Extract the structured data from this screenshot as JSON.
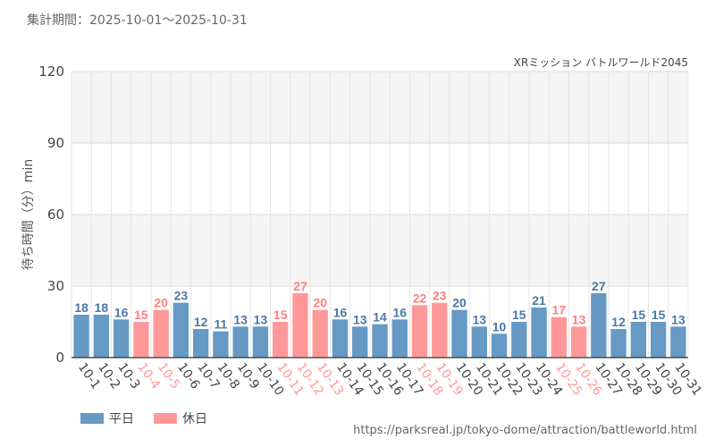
{
  "header": {
    "period": "集計期間：2025-10-01～2025-10-31"
  },
  "source": "https://parksreal.jp/tokyo-dome/attraction/battleworld.html",
  "colors": {
    "weekday": "#6699c4",
    "holiday": "#ff9999",
    "weekday_label": "#4a78a6",
    "holiday_label": "#ff7f7f",
    "grid": "#e6e6e6",
    "band": "#f4f4f4"
  },
  "chart_data": {
    "type": "bar",
    "title": "XRミッション バトルワールド2045",
    "xlabel": "",
    "ylabel": "待ち時間（分）min",
    "ylim": [
      0,
      120
    ],
    "yticks": [
      0,
      30,
      60,
      90,
      120
    ],
    "categories": [
      "10-1",
      "10-2",
      "10-3",
      "10-4",
      "10-5",
      "10-6",
      "10-7",
      "10-8",
      "10-9",
      "10-10",
      "10-11",
      "10-12",
      "10-13",
      "10-14",
      "10-15",
      "10-16",
      "10-17",
      "10-18",
      "10-19",
      "10-20",
      "10-21",
      "10-22",
      "10-23",
      "10-24",
      "10-25",
      "10-26",
      "10-27",
      "10-28",
      "10-29",
      "10-30",
      "10-31"
    ],
    "values": [
      18,
      18,
      16,
      15,
      20,
      23,
      12,
      11,
      13,
      13,
      15,
      27,
      20,
      16,
      13,
      14,
      16,
      22,
      23,
      20,
      13,
      10,
      15,
      21,
      17,
      13,
      27,
      12,
      15,
      15,
      13
    ],
    "day_type": [
      "weekday",
      "weekday",
      "weekday",
      "holiday",
      "holiday",
      "weekday",
      "weekday",
      "weekday",
      "weekday",
      "weekday",
      "holiday",
      "holiday",
      "holiday",
      "weekday",
      "weekday",
      "weekday",
      "weekday",
      "holiday",
      "holiday",
      "weekday",
      "weekday",
      "weekday",
      "weekday",
      "weekday",
      "holiday",
      "holiday",
      "weekday",
      "weekday",
      "weekday",
      "weekday",
      "weekday"
    ],
    "legend": [
      {
        "key": "weekday",
        "label": "平日"
      },
      {
        "key": "holiday",
        "label": "休日"
      }
    ]
  }
}
